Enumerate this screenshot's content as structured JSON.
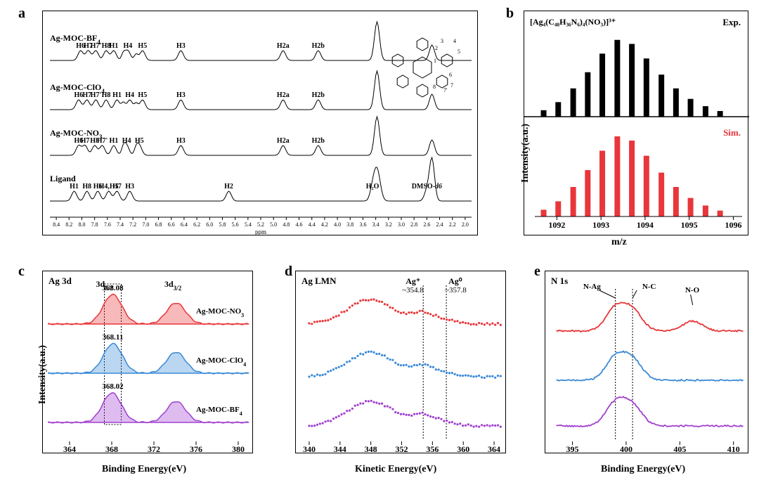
{
  "colors": {
    "red": "#e8363a",
    "blue": "#3a8ad6",
    "purple": "#a040d0",
    "black": "#000000",
    "fill_red": "rgba(232,54,58,0.35)",
    "fill_blue": "rgba(58,138,214,0.35)",
    "fill_purple": "rgba(160,64,208,0.35)",
    "gray_line": "#808080"
  },
  "panel_a": {
    "label": "a",
    "xlabel": "ppm",
    "xticks": [
      "8.4",
      "8.2",
      "8.0",
      "7.8",
      "7.6",
      "7.4",
      "7.2",
      "7.0",
      "6.8",
      "6.6",
      "6.4",
      "6.2",
      "6.0",
      "5.8",
      "5.6",
      "5.4",
      "5.2",
      "5.0",
      "4.8",
      "4.6",
      "4.4",
      "4.2",
      "4.0",
      "3.8",
      "3.6",
      "3.4",
      "3.2",
      "3.0",
      "2.8",
      "2.6",
      "2.4",
      "2.2",
      "2.0"
    ],
    "xlim": [
      8.5,
      1.9
    ],
    "traces": [
      {
        "name": "Ag-MOC-BF4",
        "sub": "4",
        "y0": 45,
        "labels": [
          {
            "t": "H6",
            "x": 8.02
          },
          {
            "t": "H7",
            "x": 7.9
          },
          {
            "t": "H7'",
            "x": 7.78
          },
          {
            "t": "H8",
            "x": 7.62
          },
          {
            "t": "H1",
            "x": 7.5
          },
          {
            "t": "H4",
            "x": 7.28
          },
          {
            "t": "H5",
            "x": 7.05
          },
          {
            "t": "H3",
            "x": 6.45
          },
          {
            "t": "H2a",
            "x": 4.85
          },
          {
            "t": "H2b",
            "x": 4.3
          }
        ]
      },
      {
        "name": "Ag-MOC-ClO4",
        "sub": "4",
        "y0": 115,
        "labels": [
          {
            "t": "H6",
            "x": 8.05
          },
          {
            "t": "H7",
            "x": 7.92
          },
          {
            "t": "H7'",
            "x": 7.78
          },
          {
            "t": "H8",
            "x": 7.62
          },
          {
            "t": "H1",
            "x": 7.45
          },
          {
            "t": "H4",
            "x": 7.25
          },
          {
            "t": "H5",
            "x": 7.05
          },
          {
            "t": "H3",
            "x": 6.45
          },
          {
            "t": "H2a",
            "x": 4.85
          },
          {
            "t": "H2b",
            "x": 4.3
          }
        ]
      },
      {
        "name": "Ag-MOC-NO3",
        "sub": "3",
        "y0": 180,
        "labels": [
          {
            "t": "H6",
            "x": 8.05
          },
          {
            "t": "H7",
            "x": 7.95
          },
          {
            "t": "H8",
            "x": 7.8
          },
          {
            "t": "H7'",
            "x": 7.68
          },
          {
            "t": "H1",
            "x": 7.5
          },
          {
            "t": "H4",
            "x": 7.3
          },
          {
            "t": "H5",
            "x": 7.1
          },
          {
            "t": "H3",
            "x": 6.45
          },
          {
            "t": "H2a",
            "x": 4.85
          },
          {
            "t": "H2b",
            "x": 4.3
          }
        ]
      },
      {
        "name": "Ligand",
        "sub": "",
        "y0": 245,
        "labels": [
          {
            "t": "H1",
            "x": 8.12
          },
          {
            "t": "H8",
            "x": 7.92
          },
          {
            "t": "H6",
            "x": 7.75
          },
          {
            "t": "H4,H5",
            "x": 7.58
          },
          {
            "t": "H7",
            "x": 7.45
          },
          {
            "t": "H3",
            "x": 7.25
          },
          {
            "t": "H2",
            "x": 5.7
          },
          {
            "t": "H₂O",
            "x": 3.45
          },
          {
            "t": "DMSO-d6",
            "x": 2.6,
            "italic": true
          }
        ]
      }
    ]
  },
  "panel_b": {
    "label": "b",
    "formula": "[Ag₄(C₄₈H₃₆N₆)₄(NO₃)]³⁺",
    "exp": "Exp.",
    "sim": "Sim.",
    "xlabel": "m/z",
    "ylabel": "Intensity(a.u.)",
    "xticks": [
      1092,
      1093,
      1094,
      1095,
      1096
    ],
    "xlim": [
      1091.5,
      1096.2
    ],
    "bars": [
      {
        "x": 1091.7,
        "h": 0.08
      },
      {
        "x": 1092.03,
        "h": 0.18
      },
      {
        "x": 1092.37,
        "h": 0.35
      },
      {
        "x": 1092.7,
        "h": 0.55
      },
      {
        "x": 1093.03,
        "h": 0.78
      },
      {
        "x": 1093.37,
        "h": 0.95
      },
      {
        "x": 1093.7,
        "h": 0.9
      },
      {
        "x": 1094.03,
        "h": 0.72
      },
      {
        "x": 1094.37,
        "h": 0.52
      },
      {
        "x": 1094.7,
        "h": 0.35
      },
      {
        "x": 1095.03,
        "h": 0.22
      },
      {
        "x": 1095.37,
        "h": 0.13
      },
      {
        "x": 1095.7,
        "h": 0.07
      }
    ]
  },
  "panel_c": {
    "label": "c",
    "title": "Ag 3d",
    "sub52": "3d",
    "sub52s": "5/2",
    "sub32": "3d",
    "sub32s": "3/2",
    "xlabel": "Binding Energy(eV)",
    "ylabel": "Intensity(a.u.)",
    "xticks": [
      364,
      368,
      372,
      376,
      380
    ],
    "xlim": [
      362,
      381
    ],
    "traces": [
      {
        "name": "Ag-MOC-NO3",
        "sub": "3",
        "color": "red",
        "peak_label": "368.08",
        "p1": 368.08,
        "p2": 374.1,
        "y0": 55
      },
      {
        "name": "Ag-MOC-ClO4",
        "sub": "4",
        "color": "blue",
        "peak_label": "368.11",
        "p1": 368.11,
        "p2": 374.1,
        "y0": 125
      },
      {
        "name": "Ag-MOC-BF4",
        "sub": "4",
        "color": "purple",
        "peak_label": "368.02",
        "p1": 368.02,
        "p2": 374.1,
        "y0": 195
      }
    ]
  },
  "panel_d": {
    "label": "d",
    "title": "Ag LMN",
    "xlabel": "Kinetic Energy(eV)",
    "xticks": [
      340,
      344,
      348,
      352,
      356,
      360,
      364
    ],
    "xlim": [
      339,
      365
    ],
    "ann1": "Ag⁺",
    "ann1b": "~354.8",
    "ann2": "Ag⁰",
    "ann2b": "~357.8"
  },
  "panel_e": {
    "label": "e",
    "title": "N 1s",
    "xlabel": "Binding Energy(eV)",
    "xticks": [
      395,
      400,
      405,
      410
    ],
    "xlim": [
      393,
      411
    ],
    "ann_nag": "N-Ag",
    "ann_nc": "N-C",
    "ann_no": "N-O"
  }
}
